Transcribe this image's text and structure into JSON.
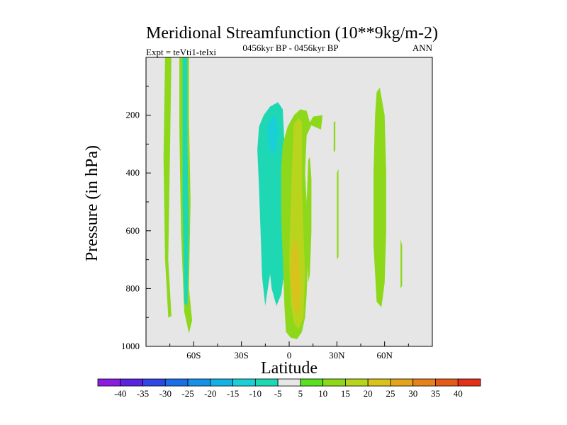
{
  "chart_data": {
    "type": "filled-contour",
    "title": "Meridional Streamfunction (10**9kg/m-2)",
    "subtitle_center": "0456kyr BP - 0456kyr BP",
    "subtitle_left": "Expt = teVti1-teIxi",
    "subtitle_right": "ANN",
    "xlabel": "Latitude",
    "ylabel": "Pressure (in hPa)",
    "xlim": [
      -90,
      90
    ],
    "ylim": [
      1000,
      0
    ],
    "x_ticks": [
      {
        "value": -60,
        "label": "60S"
      },
      {
        "value": -30,
        "label": "30S"
      },
      {
        "value": 0,
        "label": "0"
      },
      {
        "value": 30,
        "label": "30N"
      },
      {
        "value": 60,
        "label": "60N"
      }
    ],
    "y_ticks": [
      {
        "value": 200,
        "label": "200"
      },
      {
        "value": 400,
        "label": "400"
      },
      {
        "value": 600,
        "label": "600"
      },
      {
        "value": 800,
        "label": "800"
      },
      {
        "value": 1000,
        "label": "1000"
      }
    ],
    "colorbar": {
      "labels": [
        "-40",
        "-35",
        "-30",
        "-25",
        "-20",
        "-15",
        "-10",
        "-5",
        "5",
        "10",
        "15",
        "20",
        "25",
        "30",
        "35",
        "40"
      ],
      "colors": [
        "#8a1de0",
        "#5a22e0",
        "#2f46e6",
        "#1a6ee6",
        "#1592e8",
        "#12b2e4",
        "#18d0d6",
        "#1ed8b4",
        "#e6e6e6",
        "#5ae01e",
        "#8ed81c",
        "#b8d41c",
        "#d8c21c",
        "#e2a41c",
        "#e6821a",
        "#e65a18",
        "#e2301a"
      ]
    },
    "regions": [
      {
        "value": 5,
        "points": [
          [
            -78,
            0
          ],
          [
            -74,
            0
          ],
          [
            -75,
            350
          ],
          [
            -76,
            700
          ],
          [
            -74,
            895
          ],
          [
            -76,
            900
          ],
          [
            -78,
            700
          ],
          [
            -79,
            350
          ]
        ]
      },
      {
        "value": 5,
        "points": [
          [
            -69,
            0
          ],
          [
            -63,
            0
          ],
          [
            -63,
            200
          ],
          [
            -62,
            500
          ],
          [
            -63,
            800
          ],
          [
            -61,
            910
          ],
          [
            -63,
            955
          ],
          [
            -66,
            880
          ],
          [
            -68,
            600
          ],
          [
            -69,
            250
          ]
        ]
      },
      {
        "value": -10,
        "points": [
          [
            -67,
            0
          ],
          [
            -64,
            0
          ],
          [
            -64,
            300
          ],
          [
            -63,
            600
          ],
          [
            -64,
            860
          ],
          [
            -66,
            850
          ],
          [
            -67,
            500
          ]
        ]
      },
      {
        "value": -10,
        "points": [
          [
            -20,
            320
          ],
          [
            -19,
            240
          ],
          [
            -16,
            200
          ],
          [
            -12,
            170
          ],
          [
            -7,
            155
          ],
          [
            -4,
            180
          ],
          [
            -3,
            300
          ],
          [
            -3,
            450
          ],
          [
            -3,
            600
          ],
          [
            -2,
            700
          ],
          [
            -5,
            820
          ],
          [
            -8,
            860
          ],
          [
            -11,
            800
          ],
          [
            -12,
            750
          ],
          [
            -14,
            820
          ],
          [
            -15,
            860
          ],
          [
            -17,
            760
          ],
          [
            -18,
            600
          ],
          [
            -19,
            450
          ]
        ]
      },
      {
        "value": -15,
        "points": [
          [
            -14,
            240
          ],
          [
            -11,
            210
          ],
          [
            -8,
            200
          ],
          [
            -7,
            260
          ],
          [
            -8,
            320
          ],
          [
            -11,
            340
          ],
          [
            -13,
            300
          ]
        ]
      },
      {
        "value": 5,
        "points": [
          [
            -5,
            380
          ],
          [
            -4,
            300
          ],
          [
            -1,
            240
          ],
          [
            3,
            200
          ],
          [
            7,
            180
          ],
          [
            11,
            185
          ],
          [
            13,
            225
          ],
          [
            15,
            205
          ],
          [
            21,
            200
          ],
          [
            20,
            250
          ],
          [
            14,
            235
          ],
          [
            11,
            270
          ],
          [
            10,
            400
          ],
          [
            11,
            500
          ],
          [
            12,
            650
          ],
          [
            11,
            820
          ],
          [
            10,
            900
          ],
          [
            8,
            950
          ],
          [
            5,
            975
          ],
          [
            1,
            970
          ],
          [
            -2,
            950
          ],
          [
            -3,
            860
          ],
          [
            -4,
            700
          ],
          [
            -5,
            550
          ]
        ]
      },
      {
        "value": 10,
        "points": [
          [
            3,
            230
          ],
          [
            6,
            210
          ],
          [
            8,
            225
          ],
          [
            8,
            350
          ],
          [
            8,
            450
          ],
          [
            9,
            600
          ],
          [
            10,
            750
          ],
          [
            9,
            900
          ],
          [
            6,
            940
          ],
          [
            3,
            920
          ],
          [
            1,
            850
          ],
          [
            0,
            700
          ],
          [
            1,
            500
          ],
          [
            2,
            350
          ]
        ]
      },
      {
        "value": 15,
        "points": [
          [
            2,
            650
          ],
          [
            4,
            620
          ],
          [
            6,
            680
          ],
          [
            7,
            800
          ],
          [
            6,
            880
          ],
          [
            4,
            890
          ],
          [
            2,
            840
          ],
          [
            1,
            740
          ]
        ]
      },
      {
        "value": 5,
        "points": [
          [
            12,
            355
          ],
          [
            13,
            345
          ],
          [
            14,
            420
          ],
          [
            14,
            600
          ],
          [
            13,
            750
          ],
          [
            12,
            780
          ],
          [
            11,
            650
          ],
          [
            11,
            500
          ]
        ]
      },
      {
        "value": 5,
        "points": [
          [
            30,
            400
          ],
          [
            31,
            385
          ],
          [
            31,
            540
          ],
          [
            31,
            690
          ],
          [
            30,
            700
          ],
          [
            30,
            550
          ]
        ]
      },
      {
        "value": 5,
        "points": [
          [
            28,
            225
          ],
          [
            29,
            220
          ],
          [
            29,
            320
          ],
          [
            28,
            330
          ]
        ]
      },
      {
        "value": 5,
        "points": [
          [
            55,
            120
          ],
          [
            57,
            105
          ],
          [
            60,
            200
          ],
          [
            61,
            400
          ],
          [
            61,
            600
          ],
          [
            60,
            780
          ],
          [
            58,
            865
          ],
          [
            55,
            845
          ],
          [
            53,
            650
          ],
          [
            53,
            400
          ],
          [
            54,
            200
          ]
        ]
      },
      {
        "value": 5,
        "points": [
          [
            70,
            630
          ],
          [
            71,
            650
          ],
          [
            71,
            790
          ],
          [
            70,
            800
          ]
        ]
      }
    ]
  }
}
